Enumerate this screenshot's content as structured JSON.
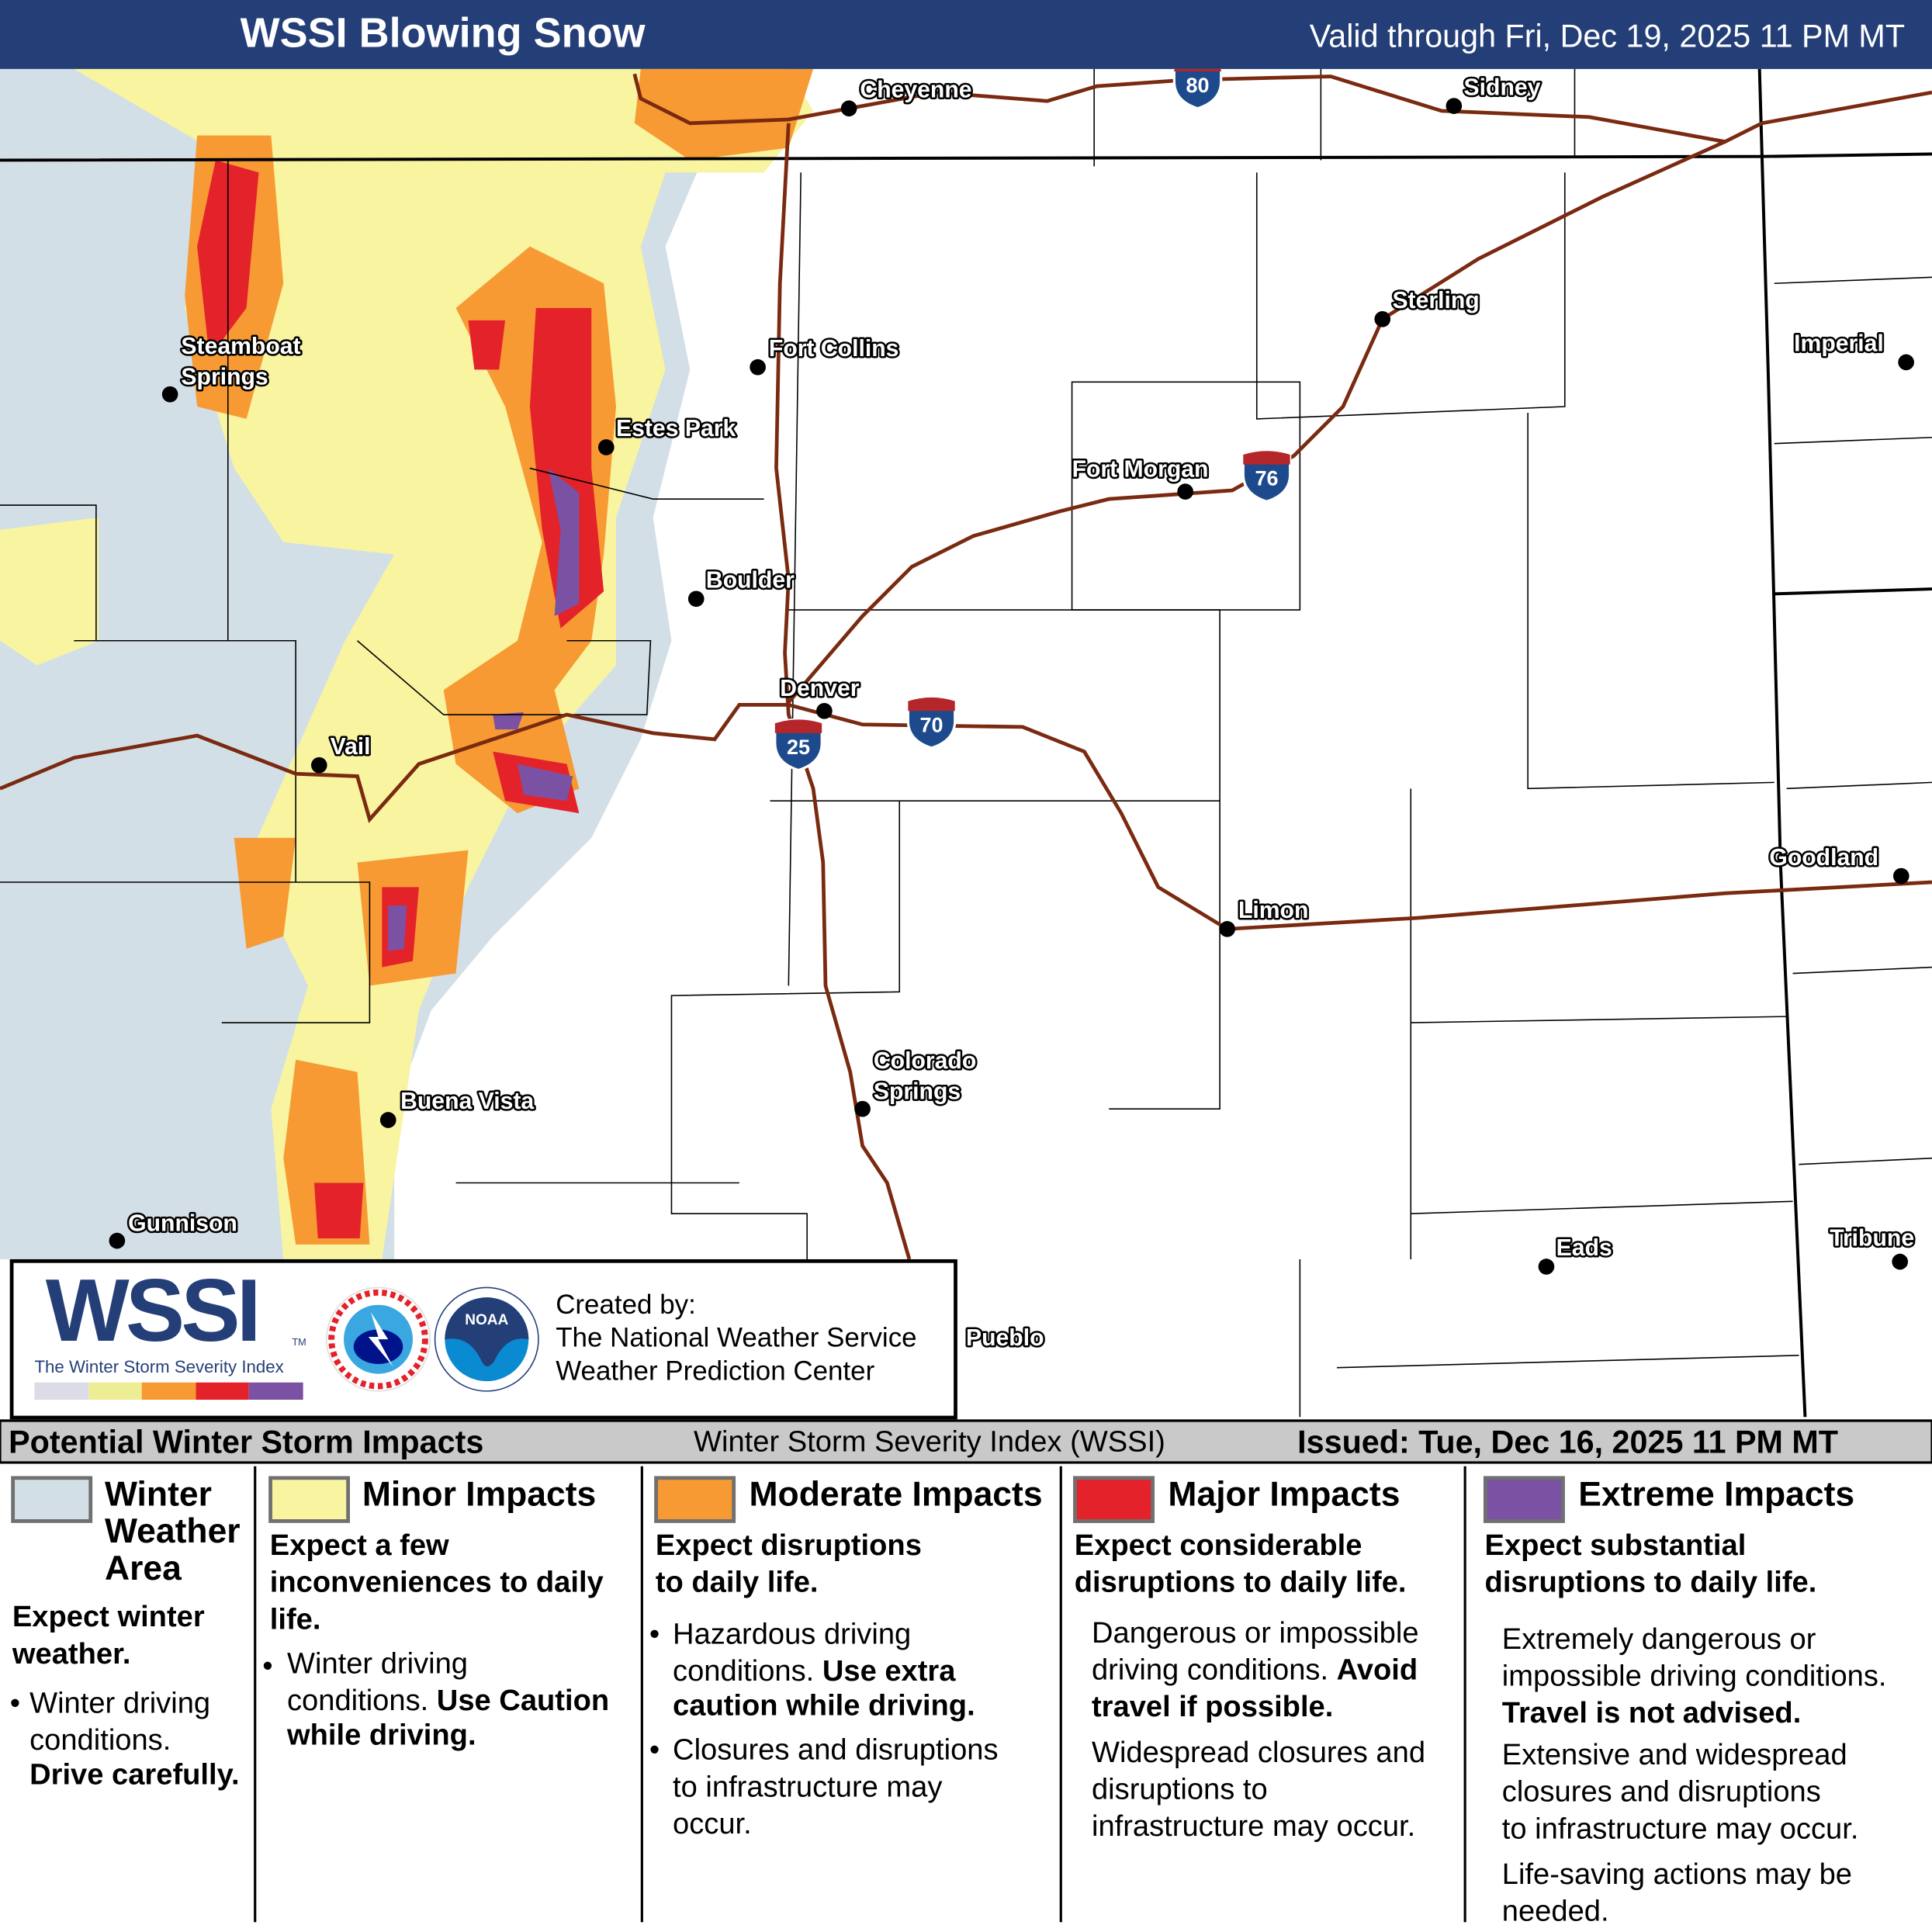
{
  "header": {
    "title": "WSSI Blowing Snow",
    "valid": "Valid through Fri, Dec 19, 2025 11 PM MT"
  },
  "colors": {
    "winter_weather": "#d3dfe7",
    "minor": "#f8f4a0",
    "moderate": "#f79a33",
    "major": "#e4222a",
    "extreme": "#7b52a3",
    "road": "#7a2a10",
    "header": "#243f78"
  },
  "cities": [
    "Cheyenne",
    "Sidney",
    "Sterling",
    "Imperial",
    "Fort Collins",
    "Steamboat",
    "Springs",
    "Estes Park",
    "Fort Morgan",
    "Boulder",
    "Denver",
    "Vail",
    "Goodland",
    "Limon",
    "Colorado",
    "Springs",
    "Buena Vista",
    "Gunnison",
    "Eads",
    "Tribune",
    "Pueblo"
  ],
  "shields": [
    "80",
    "76",
    "70",
    "25"
  ],
  "logo": {
    "wssi": "WSSI",
    "tm": "TM",
    "subtitle": "The Winter Storm Severity Index",
    "created_by": "Created by:",
    "org1": "The National Weather Service",
    "org2": "Weather Prediction Center",
    "nws_seal": "NATIONAL WEATHER SERVICE",
    "noaa_seal": "NOAA"
  },
  "band": {
    "left": "Potential Winter Storm Impacts",
    "middle": "Winter Storm Severity Index (WSSI)",
    "right": "Issued: Tue, Dec 16, 2025 11 PM MT"
  },
  "legend": {
    "winter": {
      "title1": "Winter",
      "title2": "Weather",
      "title3": "Area",
      "lead1": "Expect winter",
      "lead2": "weather.",
      "b1": "Winter driving",
      "b2": "conditions.",
      "b3": "Drive carefully."
    },
    "minor": {
      "title": "Minor Impacts",
      "lead1": "Expect a few",
      "lead2": "inconveniences to daily",
      "lead3": "life.",
      "b1": "Winter driving",
      "b2": "conditions. ",
      "b2b": "Use Caution",
      "b3": "while driving."
    },
    "moderate": {
      "title": "Moderate Impacts",
      "lead1": "Expect disruptions",
      "lead2": "to daily life.",
      "b1": "Hazardous driving",
      "b2": "conditions. ",
      "b2b": "Use extra",
      "b3": "caution while driving.",
      "c1": "Closures and disruptions",
      "c2": "to infrastructure may",
      "c3": "occur."
    },
    "major": {
      "title": "Major Impacts",
      "lead1": "Expect considerable",
      "lead2": "disruptions to daily life.",
      "b1": "Dangerous or impossible",
      "b2": "driving conditions. ",
      "b2b": "Avoid",
      "b3": "travel if possible.",
      "c1": "Widespread closures and",
      "c2": "disruptions to",
      "c3": "infrastructure may occur."
    },
    "extreme": {
      "title": "Extreme Impacts",
      "lead1": "Expect substantial",
      "lead2": "disruptions to daily life.",
      "b1": "Extremely dangerous or",
      "b2": "impossible driving conditions.",
      "b3": "Travel is not advised.",
      "c1": "Extensive and widespread",
      "c2": "closures and disruptions",
      "c3": "to infrastructure may occur.",
      "d1": "Life-saving actions may be",
      "d2": "needed."
    }
  }
}
